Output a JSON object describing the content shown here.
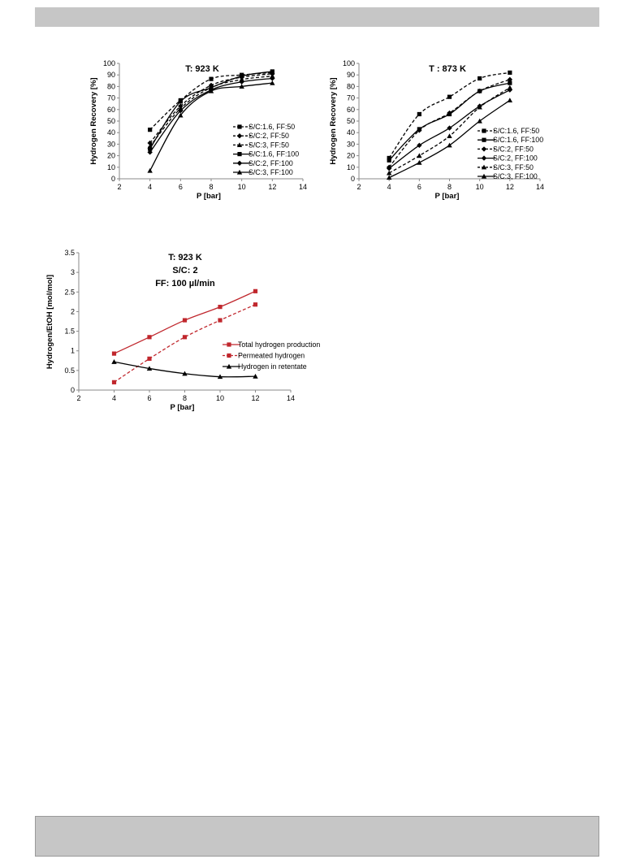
{
  "chart_data": [
    {
      "type": "line",
      "title": "T: 923 K",
      "xlabel": "P [bar]",
      "ylabel": "Hydrogen Recovery [%]",
      "xlim": [
        2,
        14
      ],
      "xticks": [
        2,
        4,
        6,
        8,
        10,
        12,
        14
      ],
      "ylim": [
        0,
        100
      ],
      "yticks": [
        0,
        10,
        20,
        30,
        40,
        50,
        60,
        70,
        80,
        90,
        100
      ],
      "grid": false,
      "legend_position": "bottom-right",
      "x": [
        4,
        6,
        8,
        10,
        12
      ],
      "series": [
        {
          "name": "S/C:1.6, FF:50",
          "marker": "square",
          "dash": "dashed",
          "values": [
            42.5,
            68,
            86.5,
            90,
            92
          ]
        },
        {
          "name": "S/C:2,  FF:50",
          "marker": "diamond",
          "dash": "dashed",
          "values": [
            31,
            63,
            81,
            88,
            91
          ]
        },
        {
          "name": "S/C:3,  FF:50",
          "marker": "triangle",
          "dash": "dashed",
          "values": [
            28,
            61,
            79,
            86,
            89
          ]
        },
        {
          "name": "S/C:1.6, FF:100",
          "marker": "square",
          "dash": "solid",
          "values": [
            26,
            67,
            79,
            89,
            93
          ]
        },
        {
          "name": "S/C:2,  FF:100",
          "marker": "diamond",
          "dash": "solid",
          "values": [
            23,
            59,
            77,
            84,
            87
          ]
        },
        {
          "name": "S/C:3,  FF:100",
          "marker": "triangle",
          "dash": "solid",
          "values": [
            7,
            55,
            76,
            80,
            83
          ]
        }
      ]
    },
    {
      "type": "line",
      "title": "T : 873 K",
      "xlabel": "P [bar]",
      "ylabel": "Hydrogen  Recovery [%]",
      "xlim": [
        2,
        14
      ],
      "xticks": [
        2,
        4,
        6,
        8,
        10,
        12,
        14
      ],
      "ylim": [
        0,
        100
      ],
      "yticks": [
        0,
        10,
        20,
        30,
        40,
        50,
        60,
        70,
        80,
        90,
        100
      ],
      "grid": false,
      "legend_position": "bottom-right",
      "x": [
        4,
        6,
        8,
        10,
        12
      ],
      "series": [
        {
          "name": "S/C:1.6, FF:50",
          "marker": "square",
          "dash": "dashed",
          "values": [
            18,
            56,
            71,
            87,
            92
          ]
        },
        {
          "name": "S/C:1.6, FF:100",
          "marker": "square",
          "dash": "solid",
          "values": [
            16,
            43,
            56,
            76,
            83
          ]
        },
        {
          "name": "S/C:2, FF:50",
          "marker": "diamond",
          "dash": "dashed",
          "values": [
            10,
            42,
            57,
            76,
            86
          ]
        },
        {
          "name": "S/C:2, FF:100",
          "marker": "diamond",
          "dash": "solid",
          "values": [
            9,
            29,
            44,
            63,
            77
          ]
        },
        {
          "name": "S/C:3, FF:50",
          "marker": "triangle",
          "dash": "dashed",
          "values": [
            5,
            20,
            37,
            62,
            79
          ]
        },
        {
          "name": "S/C:3, FF:100",
          "marker": "triangle",
          "dash": "solid",
          "values": [
            1,
            14,
            29,
            50,
            68
          ]
        }
      ]
    },
    {
      "type": "line",
      "title": [
        "T: 923 K",
        "S/C: 2",
        "FF: 100 µl/min"
      ],
      "xlabel": "P [bar]",
      "ylabel": "Hydrogen/EtOH [mol/mol]",
      "xlim": [
        2,
        14
      ],
      "xticks": [
        2,
        4,
        6,
        8,
        10,
        12,
        14
      ],
      "ylim": [
        0,
        3.5
      ],
      "yticks": [
        0,
        0.5,
        1,
        1.5,
        2,
        2.5,
        3,
        3.5
      ],
      "grid": false,
      "legend_position": "center-right",
      "x": [
        4,
        6,
        8,
        10,
        12
      ],
      "series": [
        {
          "name": "Total hydrogen production",
          "marker": "square",
          "dash": "solid",
          "color": "#c0272d",
          "values": [
            0.93,
            1.35,
            1.78,
            2.12,
            2.52
          ]
        },
        {
          "name": "Permeated hydrogen",
          "marker": "square",
          "dash": "dashed",
          "color": "#c0272d",
          "values": [
            0.2,
            0.8,
            1.35,
            1.78,
            2.18
          ]
        },
        {
          "name": "Hydrogen in retentate",
          "marker": "triangle",
          "dash": "solid",
          "color": "#000000",
          "values": [
            0.72,
            0.55,
            0.42,
            0.34,
            0.35
          ]
        }
      ]
    }
  ]
}
